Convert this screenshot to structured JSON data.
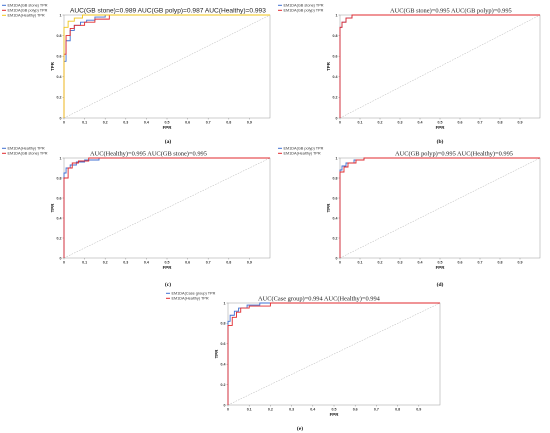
{
  "chart_data": [
    {
      "type": "line",
      "panel_label": "(a)",
      "title": "AUC(GB stone)=0.989  AUC(GB polyp)=0.987  AUC(Healthy)=0.993",
      "xlabel": "FPR",
      "ylabel": "TPR",
      "xlim": [
        0,
        1
      ],
      "ylim": [
        0,
        1
      ],
      "legend_position": "top-left",
      "grid": false,
      "x_ticks": [
        "0",
        "0.1",
        "0.2",
        "0.3",
        "0.4",
        "0.5",
        "0.6",
        "0.7",
        "0.8",
        "0.9"
      ],
      "y_ticks": [
        "0",
        "0.2",
        "0.4",
        "0.6",
        "0.8",
        "1"
      ],
      "series": [
        {
          "name": "EM1DA(GB stone) TPR",
          "color": "#3f6fd1",
          "x": [
            0,
            0,
            0.01,
            0.01,
            0.03,
            0.03,
            0.05,
            0.05,
            0.08,
            0.08,
            0.11,
            0.11,
            0.15,
            0.15,
            0.2,
            0.2,
            1
          ],
          "y": [
            0,
            0.55,
            0.55,
            0.75,
            0.75,
            0.85,
            0.85,
            0.9,
            0.9,
            0.93,
            0.93,
            0.95,
            0.95,
            0.98,
            0.98,
            1,
            1
          ]
        },
        {
          "name": "EM1DA(GB polyp) TPR",
          "color": "#e0282d",
          "x": [
            0,
            0,
            0.01,
            0.01,
            0.03,
            0.03,
            0.05,
            0.05,
            0.1,
            0.1,
            0.15,
            0.15,
            0.22,
            0.22,
            1
          ],
          "y": [
            0,
            0.62,
            0.62,
            0.8,
            0.8,
            0.87,
            0.87,
            0.9,
            0.9,
            0.93,
            0.93,
            0.96,
            0.96,
            1,
            1
          ]
        },
        {
          "name": "EM1DA(Healthy) TPR",
          "color": "#f0c419",
          "x": [
            0,
            0,
            0.02,
            0.02,
            0.05,
            0.05,
            0.09,
            0.09,
            1
          ],
          "y": [
            0,
            0.88,
            0.88,
            0.94,
            0.94,
            0.97,
            0.97,
            1,
            1
          ]
        }
      ]
    },
    {
      "type": "line",
      "panel_label": "(b)",
      "title": "AUC(GB stone)=0.995  AUC(GB polyp)=0.995",
      "xlabel": "FPR",
      "ylabel": "TPR",
      "xlim": [
        0,
        1
      ],
      "ylim": [
        0,
        1
      ],
      "legend_position": "top-left",
      "grid": false,
      "x_ticks": [
        "0",
        "0.1",
        "0.2",
        "0.3",
        "0.4",
        "0.5",
        "0.6",
        "0.7",
        "0.8",
        "0.9"
      ],
      "y_ticks": [
        "0",
        "0.2",
        "0.4",
        "0.6",
        "0.8",
        "1"
      ],
      "series": [
        {
          "name": "EM1DA(GB stone) TPR",
          "color": "#3f6fd1",
          "x": [
            0,
            0,
            0.01,
            0.01,
            0.03,
            0.03,
            0.06,
            0.06,
            1
          ],
          "y": [
            0,
            0.88,
            0.88,
            0.93,
            0.93,
            0.97,
            0.97,
            1,
            1
          ]
        },
        {
          "name": "EM1DA(GB polyp) TPR",
          "color": "#e0282d",
          "x": [
            0,
            0,
            0.01,
            0.01,
            0.03,
            0.03,
            0.06,
            0.06,
            1
          ],
          "y": [
            0,
            0.88,
            0.88,
            0.93,
            0.93,
            0.97,
            0.97,
            1,
            1
          ]
        }
      ]
    },
    {
      "type": "line",
      "panel_label": "(c)",
      "title": "AUC(Healthy)=0.995  AUC(GB stone)=0.995",
      "xlabel": "FPR",
      "ylabel": "TPR",
      "xlim": [
        0,
        1
      ],
      "ylim": [
        0,
        1
      ],
      "legend_position": "top-left",
      "grid": false,
      "x_ticks": [
        "0",
        "0.1",
        "0.2",
        "0.3",
        "0.4",
        "0.5",
        "0.6",
        "0.7",
        "0.8",
        "0.9"
      ],
      "y_ticks": [
        "0",
        "0.2",
        "0.4",
        "0.6",
        "0.8",
        "1"
      ],
      "series": [
        {
          "name": "EM1DA(Healthy) TPR",
          "color": "#3f6fd1",
          "x": [
            0,
            0,
            0.01,
            0.01,
            0.03,
            0.03,
            0.06,
            0.06,
            0.1,
            0.1,
            0.17,
            0.17,
            1
          ],
          "y": [
            0,
            0.85,
            0.85,
            0.9,
            0.9,
            0.93,
            0.93,
            0.96,
            0.96,
            0.98,
            0.98,
            1,
            1
          ]
        },
        {
          "name": "EM1DA(GB stone) TPR",
          "color": "#e0282d",
          "x": [
            0,
            0,
            0.02,
            0.02,
            0.04,
            0.04,
            0.07,
            0.07,
            0.12,
            0.12,
            1
          ],
          "y": [
            0,
            0.8,
            0.8,
            0.9,
            0.9,
            0.95,
            0.95,
            0.97,
            0.97,
            1,
            1
          ]
        }
      ]
    },
    {
      "type": "line",
      "panel_label": "(d)",
      "title": "AUC(GB polyp)=0.995  AUC(Healthy)=0.995",
      "xlabel": "FPR",
      "ylabel": "TPR",
      "xlim": [
        0,
        1
      ],
      "ylim": [
        0,
        1
      ],
      "legend_position": "top-left",
      "grid": false,
      "x_ticks": [
        "0",
        "0.1",
        "0.2",
        "0.3",
        "0.4",
        "0.5",
        "0.6",
        "0.7",
        "0.8",
        "0.9"
      ],
      "y_ticks": [
        "0",
        "0.2",
        "0.4",
        "0.6",
        "0.8",
        "1"
      ],
      "series": [
        {
          "name": "EM1DA(GB polyp) TPR",
          "color": "#3f6fd1",
          "x": [
            0,
            0,
            0.01,
            0.01,
            0.03,
            0.03,
            0.07,
            0.07,
            0.12,
            0.12,
            1
          ],
          "y": [
            0,
            0.88,
            0.88,
            0.92,
            0.92,
            0.95,
            0.95,
            0.98,
            0.98,
            1,
            1
          ]
        },
        {
          "name": "EM1DA(Healthy) TPR",
          "color": "#e0282d",
          "x": [
            0,
            0,
            0.02,
            0.02,
            0.04,
            0.04,
            0.08,
            0.08,
            0.12,
            0.12,
            1
          ],
          "y": [
            0,
            0.86,
            0.86,
            0.91,
            0.91,
            0.95,
            0.95,
            0.98,
            0.98,
            1,
            1
          ]
        }
      ]
    },
    {
      "type": "line",
      "panel_label": "(e)",
      "title": "AUC(Case group)=0.994  AUC(Healthy)=0.994",
      "xlabel": "FPR",
      "ylabel": "TPR",
      "xlim": [
        0,
        1
      ],
      "ylim": [
        0,
        1
      ],
      "legend_position": "top-left",
      "grid": false,
      "x_ticks": [
        "0",
        "0.1",
        "0.2",
        "0.3",
        "0.4",
        "0.5",
        "0.6",
        "0.7",
        "0.8",
        "0.9"
      ],
      "y_ticks": [
        "0",
        "0.2",
        "0.4",
        "0.6",
        "0.8",
        "1"
      ],
      "series": [
        {
          "name": "EM1DA(Case group) TPR",
          "color": "#3f6fd1",
          "x": [
            0,
            0,
            0.01,
            0.01,
            0.03,
            0.03,
            0.05,
            0.05,
            0.09,
            0.09,
            0.15,
            0.15,
            1
          ],
          "y": [
            0,
            0.82,
            0.82,
            0.88,
            0.88,
            0.92,
            0.92,
            0.95,
            0.95,
            0.98,
            0.98,
            1,
            1
          ]
        },
        {
          "name": "EM1DA(Healthy) TPR",
          "color": "#e0282d",
          "x": [
            0,
            0,
            0.02,
            0.02,
            0.04,
            0.04,
            0.06,
            0.06,
            0.1,
            0.1,
            0.2,
            0.2,
            1
          ],
          "y": [
            0,
            0.78,
            0.78,
            0.86,
            0.86,
            0.91,
            0.91,
            0.95,
            0.95,
            0.97,
            0.97,
            1,
            1
          ]
        }
      ]
    }
  ]
}
